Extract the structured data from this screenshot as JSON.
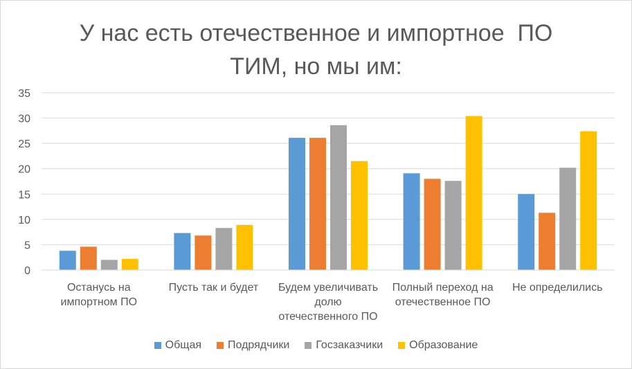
{
  "chart_data": {
    "type": "bar",
    "title_lines": [
      "У нас есть отечественное и импортное  ПО",
      "ТИМ, но мы им:"
    ],
    "categories": [
      [
        "Останусь на",
        "импортном ПО"
      ],
      [
        "Пусть так и будет"
      ],
      [
        "Будем увеличивать",
        "долю",
        "отечественного ПО"
      ],
      [
        "Полный переход на",
        "отечественное  ПО"
      ],
      [
        "Не определились"
      ]
    ],
    "series": [
      {
        "name": "Общая",
        "color": "#5b9bd5",
        "values": [
          3.8,
          7.3,
          26.1,
          19.1,
          15.0
        ]
      },
      {
        "name": "Подрядчики",
        "color": "#ed7d31",
        "values": [
          4.6,
          6.8,
          26.1,
          18.0,
          11.3
        ]
      },
      {
        "name": "Госзаказчики",
        "color": "#a5a5a5",
        "values": [
          2.0,
          8.3,
          28.6,
          17.6,
          20.2
        ]
      },
      {
        "name": "Образование",
        "color": "#ffc000",
        "values": [
          2.2,
          8.9,
          21.5,
          30.4,
          27.4
        ]
      }
    ],
    "ylim": [
      0,
      35
    ],
    "yticks": [
      0,
      5,
      10,
      15,
      20,
      25,
      30,
      35
    ],
    "grid": true,
    "legend": "bottom"
  }
}
